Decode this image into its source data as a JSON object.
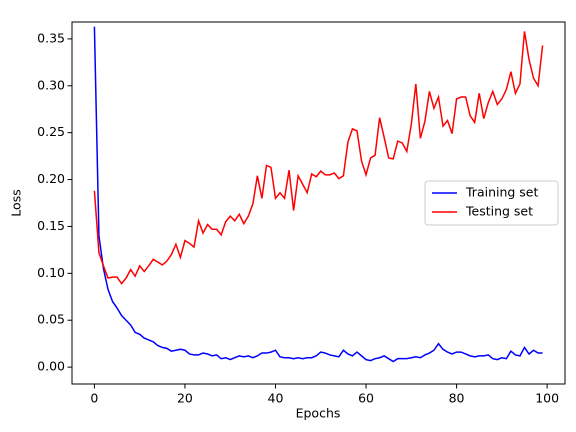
{
  "chart_data": {
    "type": "line",
    "xlabel": "Epochs",
    "ylabel": "Loss",
    "x": [
      0,
      1,
      2,
      3,
      4,
      5,
      6,
      7,
      8,
      9,
      10,
      11,
      12,
      13,
      14,
      15,
      16,
      17,
      18,
      19,
      20,
      21,
      22,
      23,
      24,
      25,
      26,
      27,
      28,
      29,
      30,
      31,
      32,
      33,
      34,
      35,
      36,
      37,
      38,
      39,
      40,
      41,
      42,
      43,
      44,
      45,
      46,
      47,
      48,
      49,
      50,
      51,
      52,
      53,
      54,
      55,
      56,
      57,
      58,
      59,
      60,
      61,
      62,
      63,
      64,
      65,
      66,
      67,
      68,
      69,
      70,
      71,
      72,
      73,
      74,
      75,
      76,
      77,
      78,
      79,
      80,
      81,
      82,
      83,
      84,
      85,
      86,
      87,
      88,
      89,
      90,
      91,
      92,
      93,
      94,
      95,
      96,
      97,
      98,
      99
    ],
    "series": [
      {
        "name": "Training set",
        "color": "#0000ff",
        "values": [
          0.363,
          0.14,
          0.105,
          0.083,
          0.07,
          0.063,
          0.055,
          0.05,
          0.045,
          0.037,
          0.035,
          0.031,
          0.029,
          0.027,
          0.023,
          0.021,
          0.02,
          0.017,
          0.018,
          0.019,
          0.018,
          0.014,
          0.013,
          0.013,
          0.015,
          0.014,
          0.012,
          0.013,
          0.009,
          0.01,
          0.008,
          0.01,
          0.012,
          0.011,
          0.012,
          0.01,
          0.012,
          0.015,
          0.015,
          0.016,
          0.018,
          0.011,
          0.01,
          0.01,
          0.009,
          0.01,
          0.009,
          0.01,
          0.01,
          0.012,
          0.016,
          0.015,
          0.013,
          0.012,
          0.011,
          0.018,
          0.014,
          0.012,
          0.016,
          0.012,
          0.008,
          0.007,
          0.009,
          0.01,
          0.012,
          0.009,
          0.006,
          0.009,
          0.009,
          0.009,
          0.01,
          0.011,
          0.01,
          0.013,
          0.015,
          0.018,
          0.025,
          0.019,
          0.016,
          0.014,
          0.016,
          0.016,
          0.014,
          0.012,
          0.011,
          0.012,
          0.012,
          0.013,
          0.009,
          0.008,
          0.01,
          0.009,
          0.017,
          0.013,
          0.012,
          0.021,
          0.014,
          0.018,
          0.015,
          0.015
        ]
      },
      {
        "name": "Testing set",
        "color": "#ff0000",
        "values": [
          0.188,
          0.122,
          0.108,
          0.095,
          0.096,
          0.096,
          0.089,
          0.095,
          0.104,
          0.097,
          0.108,
          0.102,
          0.108,
          0.115,
          0.112,
          0.109,
          0.113,
          0.12,
          0.131,
          0.117,
          0.135,
          0.132,
          0.128,
          0.156,
          0.143,
          0.152,
          0.147,
          0.147,
          0.141,
          0.155,
          0.161,
          0.156,
          0.163,
          0.153,
          0.161,
          0.174,
          0.204,
          0.18,
          0.215,
          0.213,
          0.18,
          0.186,
          0.18,
          0.21,
          0.167,
          0.204,
          0.195,
          0.186,
          0.206,
          0.203,
          0.209,
          0.205,
          0.205,
          0.207,
          0.201,
          0.204,
          0.24,
          0.254,
          0.252,
          0.22,
          0.205,
          0.223,
          0.226,
          0.266,
          0.245,
          0.223,
          0.222,
          0.241,
          0.239,
          0.23,
          0.259,
          0.302,
          0.244,
          0.262,
          0.294,
          0.276,
          0.288,
          0.257,
          0.263,
          0.249,
          0.286,
          0.288,
          0.288,
          0.268,
          0.261,
          0.292,
          0.265,
          0.282,
          0.294,
          0.28,
          0.286,
          0.296,
          0.315,
          0.292,
          0.302,
          0.358,
          0.328,
          0.308,
          0.3,
          0.343
        ]
      }
    ],
    "xlim": [
      -4.95,
      103.95
    ],
    "xticks": [
      0,
      20,
      40,
      60,
      80,
      100
    ],
    "ylim": [
      -0.018,
      0.368
    ],
    "yticks": [
      {
        "value": 0,
        "label": "0.00"
      },
      0.05,
      {
        "value": 0.1,
        "label": "0.10"
      },
      0.15,
      {
        "value": 0.2,
        "label": "0.20"
      },
      0.25,
      {
        "value": 0.3,
        "label": "0.30"
      },
      0.35
    ],
    "legend": "center right",
    "grid": false
  }
}
